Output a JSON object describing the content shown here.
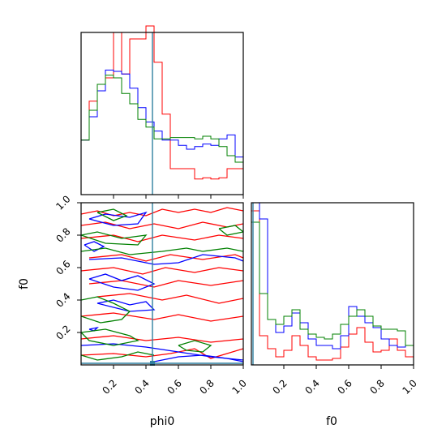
{
  "chart_data": {
    "type": "corner",
    "parameters": [
      "phi0",
      "f0"
    ],
    "xlabels": [
      "phi0",
      "f0"
    ],
    "ylabels": [
      "",
      "f0"
    ],
    "range": [
      0,
      1
    ],
    "ticks": [
      0.2,
      0.4,
      0.6,
      0.8,
      1.0
    ],
    "tick_labels": [
      "0.2",
      "0.4",
      "0.6",
      "0.8",
      "1.0"
    ],
    "bin_edges": [
      0,
      0.05,
      0.1,
      0.15,
      0.2,
      0.25,
      0.3,
      0.35,
      0.4,
      0.45,
      0.5,
      0.55,
      0.6,
      0.65,
      0.7,
      0.75,
      0.8,
      0.85,
      0.9,
      0.95,
      1.0
    ],
    "truth": {
      "phi0": 0.44,
      "f0": 0.01,
      "color": "#2f7f9f"
    },
    "series": [
      {
        "color": "#ff0000",
        "hist_phi0": [
          0.42,
          0.72,
          0.8,
          0.9,
          1.25,
          0.93,
          1.2,
          1.2,
          1.3,
          1.02,
          0.62,
          0.2,
          0.2,
          0.2,
          0.12,
          0.13,
          0.12,
          0.13,
          0.2,
          0.2
        ],
        "hist_f0": [
          0.95,
          0.18,
          0.1,
          0.05,
          0.09,
          0.18,
          0.12,
          0.05,
          0.03,
          0.03,
          0.04,
          0.11,
          0.19,
          0.23,
          0.14,
          0.08,
          0.09,
          0.16,
          0.09,
          0.05
        ]
      },
      {
        "color": "#0000ff",
        "hist_phi0": [
          0.42,
          0.6,
          0.8,
          0.96,
          0.95,
          0.93,
          0.82,
          0.67,
          0.56,
          0.49,
          0.42,
          0.42,
          0.38,
          0.35,
          0.37,
          0.39,
          0.38,
          0.43,
          0.46,
          0.29
        ],
        "hist_f0": [
          1.0,
          0.9,
          0.28,
          0.2,
          0.24,
          0.32,
          0.26,
          0.16,
          0.12,
          0.12,
          0.1,
          0.18,
          0.36,
          0.3,
          0.26,
          0.23,
          0.16,
          0.12,
          0.11,
          0.12
        ]
      },
      {
        "color": "#008000",
        "hist_phi0": [
          0.42,
          0.65,
          0.85,
          0.92,
          0.9,
          0.78,
          0.7,
          0.58,
          0.52,
          0.43,
          0.43,
          0.44,
          0.44,
          0.44,
          0.43,
          0.45,
          0.43,
          0.37,
          0.3,
          0.25
        ],
        "hist_f0": [
          0.88,
          0.44,
          0.28,
          0.25,
          0.3,
          0.34,
          0.22,
          0.19,
          0.17,
          0.16,
          0.19,
          0.25,
          0.3,
          0.34,
          0.3,
          0.24,
          0.22,
          0.22,
          0.21,
          0.12
        ]
      }
    ],
    "contours": [
      {
        "color": "#ff0000",
        "paths": [
          [
            [
              0.0,
              0.93
            ],
            [
              0.1,
              0.95
            ],
            [
              0.2,
              0.92
            ],
            [
              0.3,
              0.94
            ],
            [
              0.4,
              0.92
            ],
            [
              0.5,
              0.96
            ],
            [
              0.6,
              0.94
            ],
            [
              0.7,
              0.96
            ],
            [
              0.8,
              0.94
            ],
            [
              0.9,
              0.97
            ],
            [
              1.0,
              0.95
            ]
          ],
          [
            [
              0.0,
              0.86
            ],
            [
              0.15,
              0.88
            ],
            [
              0.3,
              0.84
            ],
            [
              0.45,
              0.87
            ],
            [
              0.6,
              0.84
            ],
            [
              0.75,
              0.88
            ],
            [
              0.9,
              0.85
            ],
            [
              1.0,
              0.87
            ]
          ],
          [
            [
              0.0,
              0.78
            ],
            [
              0.2,
              0.8
            ],
            [
              0.35,
              0.76
            ],
            [
              0.5,
              0.8
            ],
            [
              0.7,
              0.77
            ],
            [
              0.85,
              0.8
            ],
            [
              1.0,
              0.78
            ]
          ],
          [
            [
              0.05,
              0.66
            ],
            [
              0.25,
              0.68
            ],
            [
              0.4,
              0.64
            ],
            [
              0.55,
              0.68
            ],
            [
              0.75,
              0.65
            ],
            [
              0.95,
              0.68
            ],
            [
              1.0,
              0.66
            ]
          ],
          [
            [
              0.0,
              0.58
            ],
            [
              0.2,
              0.6
            ],
            [
              0.38,
              0.56
            ],
            [
              0.52,
              0.6
            ],
            [
              0.7,
              0.57
            ],
            [
              0.85,
              0.6
            ],
            [
              1.0,
              0.58
            ]
          ],
          [
            [
              0.05,
              0.5
            ],
            [
              0.25,
              0.52
            ],
            [
              0.45,
              0.48
            ],
            [
              0.6,
              0.52
            ],
            [
              0.8,
              0.49
            ],
            [
              1.0,
              0.52
            ]
          ],
          [
            [
              0.1,
              0.42
            ],
            [
              0.3,
              0.44
            ],
            [
              0.5,
              0.4
            ],
            [
              0.65,
              0.43
            ],
            [
              0.85,
              0.38
            ],
            [
              1.0,
              0.41
            ]
          ],
          [
            [
              0.0,
              0.3
            ],
            [
              0.2,
              0.32
            ],
            [
              0.45,
              0.28
            ],
            [
              0.6,
              0.31
            ],
            [
              0.8,
              0.27
            ],
            [
              1.0,
              0.3
            ]
          ],
          [
            [
              0.0,
              0.16
            ],
            [
              0.2,
              0.18
            ],
            [
              0.4,
              0.15
            ],
            [
              0.6,
              0.17
            ],
            [
              0.8,
              0.14
            ],
            [
              1.0,
              0.16
            ]
          ],
          [
            [
              0.0,
              0.06
            ],
            [
              0.2,
              0.07
            ],
            [
              0.4,
              0.05
            ],
            [
              0.55,
              0.07
            ],
            [
              0.7,
              0.1
            ],
            [
              0.8,
              0.04
            ],
            [
              1.0,
              0.1
            ]
          ]
        ]
      },
      {
        "color": "#0000ff",
        "paths": [
          [
            [
              0.05,
              0.9
            ],
            [
              0.15,
              0.93
            ],
            [
              0.3,
              0.91
            ],
            [
              0.4,
              0.94
            ],
            [
              0.35,
              0.87
            ],
            [
              0.2,
              0.86
            ],
            [
              0.05,
              0.9
            ]
          ],
          [
            [
              0.02,
              0.74
            ],
            [
              0.08,
              0.76
            ],
            [
              0.14,
              0.73
            ],
            [
              0.08,
              0.7
            ],
            [
              0.02,
              0.74
            ]
          ],
          [
            [
              0.05,
              0.65
            ],
            [
              0.25,
              0.66
            ],
            [
              0.45,
              0.62
            ],
            [
              0.6,
              0.63
            ],
            [
              0.75,
              0.68
            ],
            [
              0.95,
              0.66
            ],
            [
              1.0,
              0.64
            ]
          ],
          [
            [
              0.05,
              0.53
            ],
            [
              0.15,
              0.56
            ],
            [
              0.25,
              0.52
            ],
            [
              0.35,
              0.55
            ],
            [
              0.45,
              0.5
            ],
            [
              0.35,
              0.46
            ],
            [
              0.2,
              0.48
            ],
            [
              0.05,
              0.53
            ]
          ],
          [
            [
              0.1,
              0.38
            ],
            [
              0.2,
              0.4
            ],
            [
              0.3,
              0.37
            ],
            [
              0.4,
              0.39
            ],
            [
              0.45,
              0.34
            ],
            [
              0.3,
              0.33
            ],
            [
              0.1,
              0.38
            ]
          ],
          [
            [
              0.05,
              0.22
            ],
            [
              0.1,
              0.23
            ],
            [
              0.08,
              0.21
            ],
            [
              0.05,
              0.22
            ]
          ],
          [
            [
              0.0,
              0.12
            ],
            [
              0.2,
              0.13
            ],
            [
              0.4,
              0.11
            ],
            [
              0.6,
              0.08
            ],
            [
              0.8,
              0.05
            ],
            [
              1.0,
              0.03
            ]
          ],
          [
            [
              0.45,
              0.02
            ],
            [
              0.6,
              0.05
            ],
            [
              0.75,
              0.06
            ],
            [
              0.9,
              0.04
            ],
            [
              1.0,
              0.02
            ]
          ]
        ]
      },
      {
        "color": "#008000",
        "paths": [
          [
            [
              0.1,
              0.94
            ],
            [
              0.2,
              0.96
            ],
            [
              0.28,
              0.92
            ],
            [
              0.2,
              0.89
            ],
            [
              0.1,
              0.94
            ]
          ],
          [
            [
              0.0,
              0.8
            ],
            [
              0.1,
              0.82
            ],
            [
              0.25,
              0.78
            ],
            [
              0.4,
              0.8
            ],
            [
              0.35,
              0.74
            ],
            [
              0.15,
              0.75
            ],
            [
              0.0,
              0.8
            ]
          ],
          [
            [
              0.0,
              0.7
            ],
            [
              0.15,
              0.72
            ],
            [
              0.3,
              0.68
            ],
            [
              0.5,
              0.7
            ],
            [
              0.65,
              0.72
            ],
            [
              0.75,
              0.7
            ],
            [
              0.9,
              0.72
            ],
            [
              1.0,
              0.7
            ]
          ],
          [
            [
              0.85,
              0.84
            ],
            [
              0.95,
              0.86
            ],
            [
              1.0,
              0.82
            ],
            [
              0.9,
              0.8
            ],
            [
              0.85,
              0.84
            ]
          ],
          [
            [
              0.0,
              0.4
            ],
            [
              0.1,
              0.42
            ],
            [
              0.2,
              0.38
            ],
            [
              0.3,
              0.33
            ],
            [
              0.25,
              0.28
            ],
            [
              0.12,
              0.26
            ],
            [
              0.0,
              0.3
            ]
          ],
          [
            [
              0.0,
              0.2
            ],
            [
              0.15,
              0.22
            ],
            [
              0.3,
              0.18
            ],
            [
              0.35,
              0.15
            ],
            [
              0.2,
              0.12
            ],
            [
              0.05,
              0.15
            ],
            [
              0.0,
              0.2
            ]
          ],
          [
            [
              0.0,
              0.06
            ],
            [
              0.1,
              0.03
            ],
            [
              0.25,
              0.05
            ],
            [
              0.35,
              0.08
            ],
            [
              0.45,
              0.06
            ]
          ],
          [
            [
              0.6,
              0.12
            ],
            [
              0.7,
              0.15
            ],
            [
              0.8,
              0.12
            ],
            [
              0.75,
              0.08
            ],
            [
              0.65,
              0.09
            ],
            [
              0.6,
              0.12
            ]
          ]
        ]
      }
    ]
  }
}
